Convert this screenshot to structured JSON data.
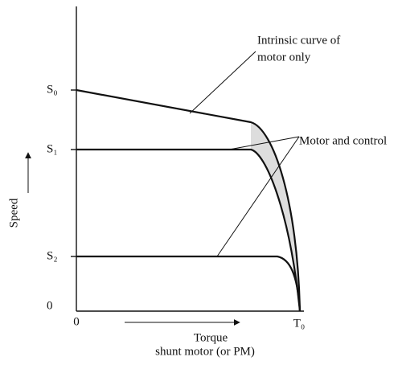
{
  "axes": {
    "y_label": "Speed",
    "x_label": "Torque",
    "x_sublabel": "shunt motor (or PM)",
    "y_ticks": [
      "S₀",
      "S₁",
      "S₂",
      "0"
    ],
    "x_ticks": [
      "0",
      "T₀"
    ]
  },
  "annotations": {
    "intrinsic": [
      "Intrinsic curve of",
      "motor only"
    ],
    "control": "Motor and control"
  }
}
